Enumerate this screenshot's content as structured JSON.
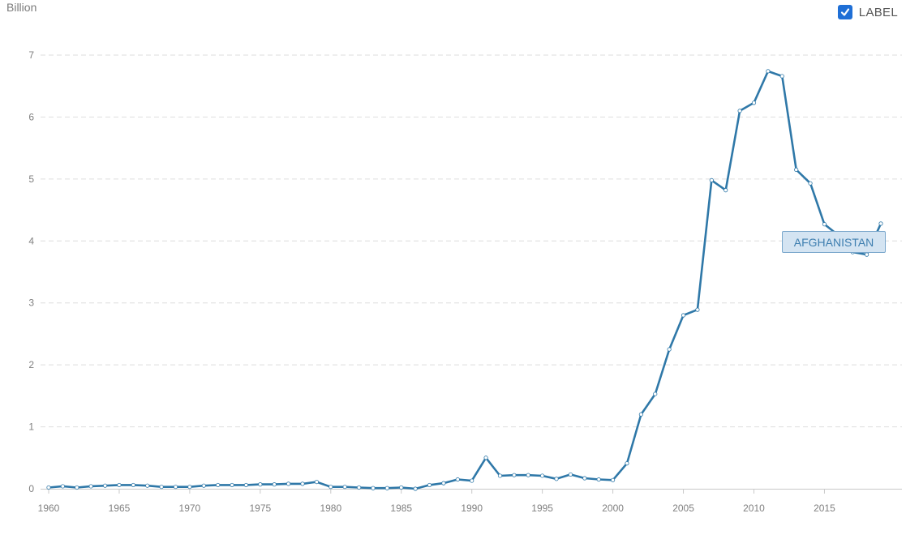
{
  "chart_data": {
    "type": "line",
    "y_unit_label": "Billion",
    "ylim": [
      0,
      7
    ],
    "yticks": [
      0,
      1,
      2,
      3,
      4,
      5,
      6,
      7
    ],
    "xlim": [
      1960,
      2019
    ],
    "xticks": [
      1960,
      1965,
      1970,
      1975,
      1980,
      1985,
      1990,
      1995,
      2000,
      2005,
      2010,
      2015
    ],
    "grid": true,
    "legend": "series label near line end",
    "series": [
      {
        "name": "AFGHANISTAN",
        "color": "#2f78a8",
        "x": [
          1960,
          1961,
          1962,
          1963,
          1964,
          1965,
          1966,
          1967,
          1968,
          1969,
          1970,
          1971,
          1972,
          1973,
          1974,
          1975,
          1976,
          1977,
          1978,
          1979,
          1980,
          1981,
          1982,
          1983,
          1984,
          1985,
          1986,
          1987,
          1988,
          1989,
          1990,
          1991,
          1992,
          1993,
          1994,
          1995,
          1996,
          1997,
          1998,
          1999,
          2000,
          2001,
          2002,
          2003,
          2004,
          2005,
          2006,
          2007,
          2008,
          2009,
          2010,
          2011,
          2012,
          2013,
          2014,
          2015,
          2016,
          2017,
          2018,
          2019
        ],
        "y": [
          0.02,
          0.04,
          0.02,
          0.04,
          0.05,
          0.06,
          0.06,
          0.05,
          0.03,
          0.03,
          0.03,
          0.05,
          0.06,
          0.06,
          0.06,
          0.07,
          0.07,
          0.08,
          0.08,
          0.11,
          0.03,
          0.03,
          0.02,
          0.01,
          0.01,
          0.02,
          0.0,
          0.06,
          0.09,
          0.15,
          0.13,
          0.5,
          0.21,
          0.22,
          0.22,
          0.21,
          0.16,
          0.23,
          0.17,
          0.15,
          0.14,
          0.41,
          1.2,
          1.53,
          2.25,
          2.8,
          2.89,
          4.98,
          4.82,
          6.1,
          6.23,
          6.74,
          6.66,
          5.15,
          4.93,
          4.27,
          4.09,
          3.82,
          3.78,
          4.28
        ]
      }
    ]
  },
  "controls": {
    "label_toggle_text": "LABEL",
    "label_toggle_checked": true
  }
}
